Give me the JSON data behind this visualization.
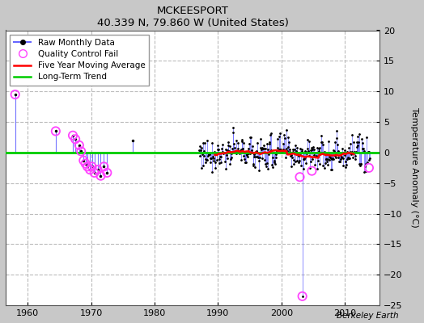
{
  "title": "MCKEESPORT",
  "subtitle": "40.339 N, 79.860 W (United States)",
  "ylabel": "Temperature Anomaly (°C)",
  "credit": "Berkeley Earth",
  "xlim": [
    1956.5,
    2015.5
  ],
  "ylim": [
    -25,
    20
  ],
  "yticks": [
    -25,
    -20,
    -15,
    -10,
    -5,
    0,
    5,
    10,
    15,
    20
  ],
  "xticks": [
    1960,
    1970,
    1980,
    1990,
    2000,
    2010
  ],
  "bg_color": "#c8c8c8",
  "plot_bg_color": "#ffffff",
  "grid_color": "#bbbbbb",
  "raw_color": "#6666ff",
  "raw_dot_color": "#000000",
  "qc_color": "#ff44ff",
  "moving_avg_color": "#ff0000",
  "trend_color": "#00cc00",
  "sparse_points": [
    [
      1958.0,
      9.5
    ],
    [
      1964.4,
      3.5
    ],
    [
      1967.1,
      2.8
    ],
    [
      1967.5,
      2.2
    ],
    [
      1968.1,
      1.2
    ],
    [
      1968.4,
      0.2
    ],
    [
      1968.8,
      -1.3
    ],
    [
      1969.1,
      -1.8
    ],
    [
      1969.4,
      -2.3
    ],
    [
      1969.8,
      -2.8
    ],
    [
      1970.1,
      -2.3
    ],
    [
      1970.5,
      -3.3
    ],
    [
      1971.0,
      -2.8
    ],
    [
      1971.5,
      -3.8
    ],
    [
      1972.0,
      -2.3
    ],
    [
      1972.5,
      -3.3
    ],
    [
      1976.5,
      2.0
    ]
  ],
  "qc_fail_x": [
    1958.0,
    1964.4,
    1967.1,
    1967.5,
    1968.1,
    1968.4,
    1968.8,
    1969.1,
    1969.4,
    1969.8,
    1970.1,
    1970.5,
    1971.0,
    1971.5,
    1972.0,
    1972.5,
    2002.9,
    2003.3,
    2004.8,
    2013.8
  ],
  "qc_fail_y": [
    9.5,
    3.5,
    2.8,
    2.2,
    1.2,
    0.2,
    -1.3,
    -1.8,
    -2.3,
    -2.8,
    -2.3,
    -3.3,
    -2.8,
    -3.8,
    -2.3,
    -3.3,
    -4.0,
    -23.5,
    -3.0,
    -2.5
  ],
  "outlier_x": 2003.3,
  "outlier_y": -23.5,
  "dense_start_year": 1987,
  "dense_end_year": 2014,
  "trend_y": 0.0,
  "seed": 77
}
